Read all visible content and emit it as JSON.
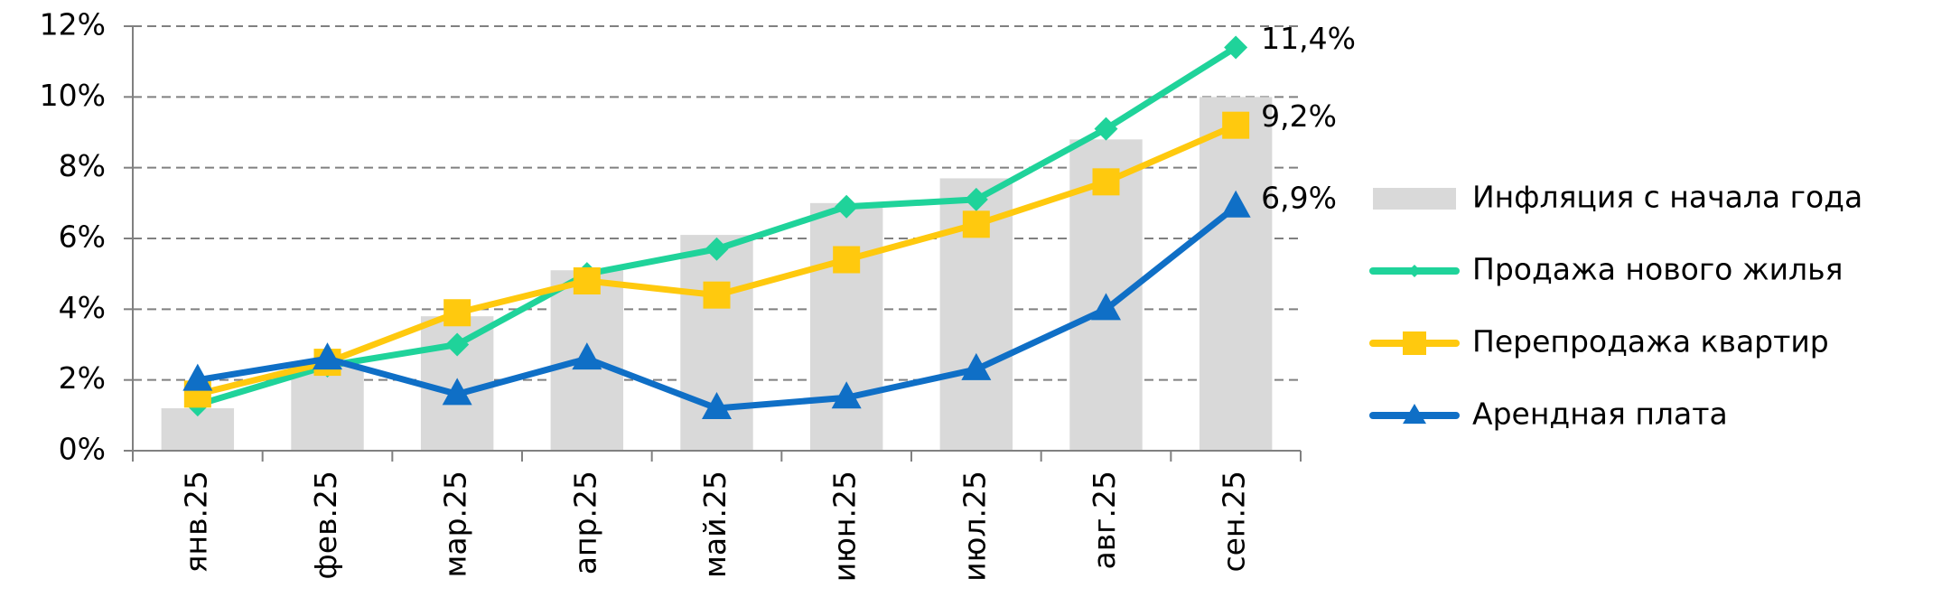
{
  "chart_data": {
    "type": "combo",
    "categories": [
      "янв.25",
      "фев.25",
      "мар.25",
      "апр.25",
      "май.25",
      "июн.25",
      "июл.25",
      "авг.25",
      "сен.25"
    ],
    "ylim": [
      0,
      12
    ],
    "yticks": [
      {
        "value": 0,
        "label": "0%"
      },
      {
        "value": 2,
        "label": "2%"
      },
      {
        "value": 4,
        "label": "4%"
      },
      {
        "value": 6,
        "label": "6%"
      },
      {
        "value": 8,
        "label": "8%"
      },
      {
        "value": 10,
        "label": "10%"
      },
      {
        "value": 12,
        "label": "12%"
      }
    ],
    "grid": true,
    "legend": "right",
    "series": [
      {
        "name": "Инфляция с начала года",
        "type": "bar",
        "color": "#d9d9d9",
        "values": [
          1.2,
          2.4,
          3.8,
          5.1,
          6.1,
          7.0,
          7.7,
          8.8,
          10.0
        ]
      },
      {
        "name": "Продажа нового жилья",
        "type": "line",
        "marker": "diamond",
        "color": "#1fd39a",
        "values": [
          1.3,
          2.4,
          3.0,
          5.0,
          5.7,
          6.9,
          7.1,
          9.1,
          11.4
        ],
        "value_labels": [
          null,
          null,
          null,
          null,
          null,
          null,
          null,
          null,
          "11,4%"
        ]
      },
      {
        "name": "Перепродажа квартир",
        "type": "line",
        "marker": "square",
        "color": "#ffc90e",
        "values": [
          1.6,
          2.5,
          3.9,
          4.8,
          4.4,
          5.4,
          6.4,
          7.6,
          9.2
        ],
        "value_labels": [
          null,
          null,
          null,
          null,
          null,
          null,
          null,
          null,
          "9,2%"
        ]
      },
      {
        "name": "Арендная плата",
        "type": "line",
        "marker": "triangle",
        "color": "#0f6fc6",
        "values": [
          2.0,
          2.6,
          1.6,
          2.6,
          1.2,
          1.5,
          2.3,
          4.0,
          6.9
        ],
        "value_labels": [
          null,
          null,
          null,
          null,
          null,
          null,
          null,
          null,
          "6,9%"
        ]
      }
    ]
  }
}
